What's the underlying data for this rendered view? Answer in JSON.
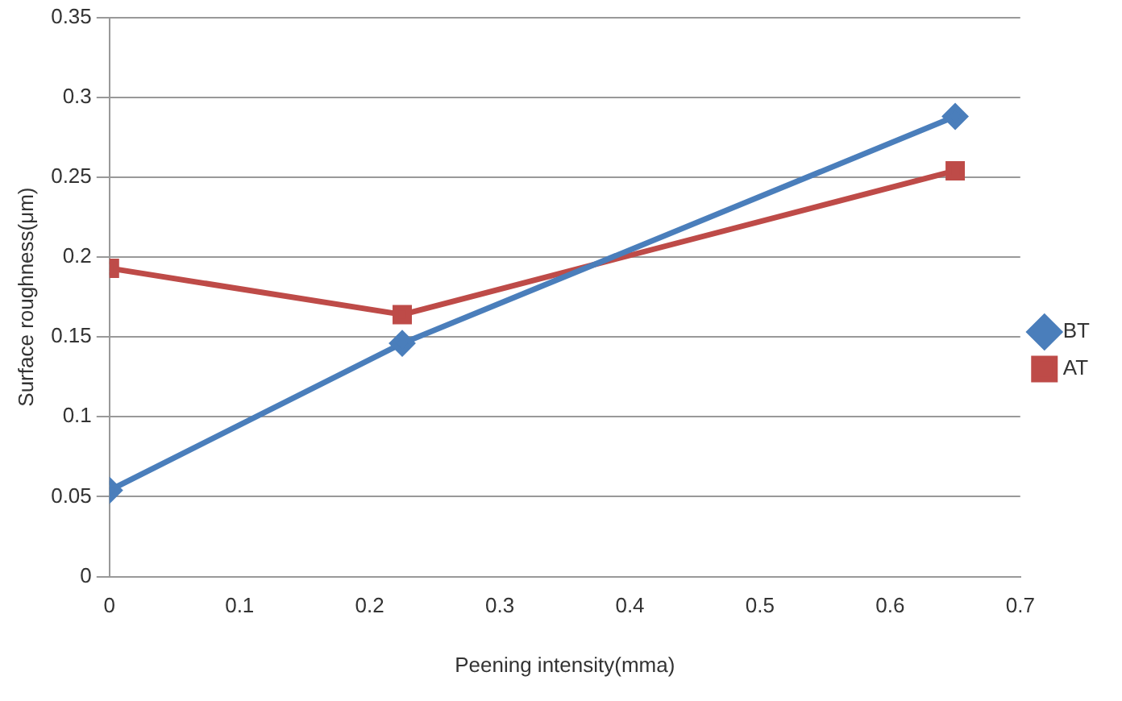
{
  "chart_data": {
    "type": "line",
    "xlabel": "Peening intensity(mma)",
    "ylabel": "Surface roughness(μm)",
    "x": [
      0,
      0.225,
      0.65
    ],
    "series": [
      {
        "name": "BT",
        "color": "#4a7ebb",
        "values": [
          0.054,
          0.146,
          0.288
        ],
        "marker": "diamond"
      },
      {
        "name": "AT",
        "color": "#be4b48",
        "values": [
          0.193,
          0.164,
          0.254
        ],
        "marker": "square"
      }
    ],
    "xlim": [
      0,
      0.7
    ],
    "xticks": [
      0,
      0.1,
      0.2,
      0.3,
      0.4,
      0.5,
      0.6,
      0.7
    ],
    "ylim": [
      0,
      0.35
    ],
    "yticks": [
      0,
      0.05,
      0.1,
      0.15,
      0.2,
      0.25,
      0.3,
      0.35
    ],
    "grid": "y",
    "legend": "right"
  }
}
